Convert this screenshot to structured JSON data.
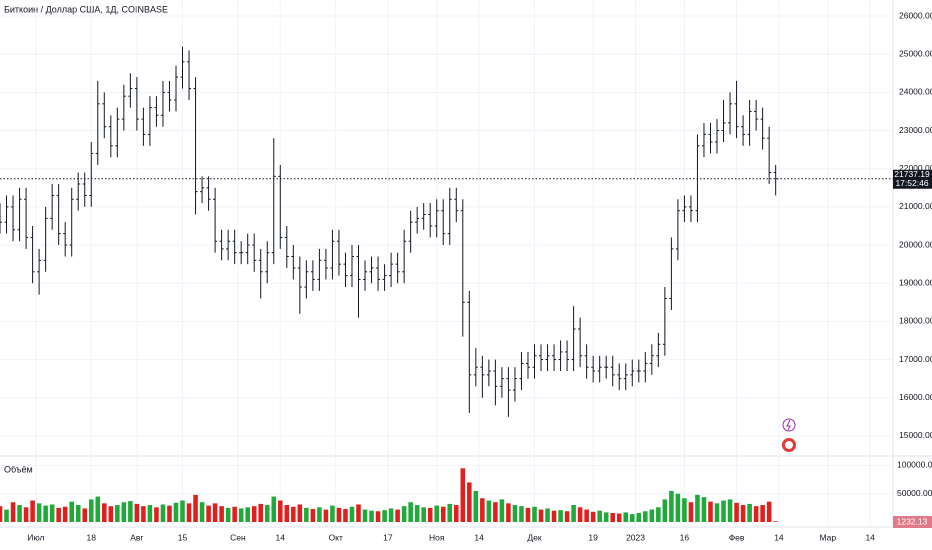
{
  "chart_data": {
    "type": "ohlc",
    "title": "Биткоин / Доллар США, 1Д, COINBASE",
    "color": "#131722",
    "grid": true,
    "x": [
      0,
      2,
      4,
      6,
      8,
      10,
      12,
      14,
      16,
      18,
      20,
      22,
      24,
      26,
      28,
      30,
      32,
      34,
      36,
      38,
      40,
      42,
      44,
      46,
      48,
      50,
      52,
      54,
      56,
      58,
      60,
      62,
      64,
      66,
      68,
      70,
      72,
      74,
      76,
      78,
      80,
      82,
      84,
      86,
      88,
      90,
      92,
      94,
      96,
      98,
      100,
      102,
      104,
      106,
      108,
      110,
      112,
      114,
      116,
      118,
      120,
      122,
      124,
      126,
      128,
      130,
      132,
      134,
      136,
      138,
      140,
      142,
      144,
      146,
      148,
      150,
      152,
      154,
      156,
      158,
      160,
      162,
      164,
      166,
      168,
      170,
      172,
      174,
      176,
      178,
      180,
      182,
      184,
      186,
      188,
      190,
      192,
      194,
      196,
      198,
      200,
      202,
      204,
      206,
      208,
      210,
      212,
      214,
      216,
      218,
      220,
      222,
      224,
      226,
      228,
      230,
      232,
      234,
      236,
      238
    ],
    "open": [
      20800,
      20600,
      21000,
      20400,
      21200,
      20200,
      19300,
      19600,
      20700,
      21300,
      20300,
      20000,
      21200,
      21600,
      21300,
      22400,
      23700,
      23100,
      22600,
      23300,
      23900,
      24100,
      23300,
      22900,
      23600,
      23400,
      24000,
      23800,
      24400,
      24800,
      24100,
      21400,
      21500,
      21200,
      20100,
      19900,
      20100,
      19800,
      19800,
      20000,
      19600,
      19300,
      19800,
      21800,
      20200,
      19700,
      19400,
      18900,
      19300,
      19100,
      19600,
      19400,
      20100,
      19500,
      19200,
      19700,
      19100,
      19300,
      19400,
      19100,
      19200,
      19500,
      19300,
      20100,
      20600,
      20700,
      20800,
      20500,
      20900,
      20300,
      21200,
      20900,
      18500,
      16600,
      16800,
      16600,
      16700,
      16300,
      16500,
      16200,
      16500,
      16900,
      16800,
      17100,
      17000,
      17100,
      17000,
      17200,
      17000,
      17800,
      17100,
      16800,
      16700,
      16800,
      16800,
      16600,
      16500,
      16600,
      16700,
      16700,
      16900,
      17100,
      17400,
      18600,
      19900,
      20900,
      21000,
      20900,
      22600,
      22900,
      22700,
      23000,
      23200,
      23700,
      23100,
      22900,
      23500,
      23300,
      22800,
      21900
    ],
    "high": [
      21100,
      21300,
      21300,
      21500,
      21500,
      20500,
      19900,
      21000,
      21600,
      21600,
      20600,
      21500,
      21900,
      21900,
      22700,
      24300,
      24000,
      23400,
      23600,
      24200,
      24500,
      24400,
      23600,
      23900,
      23900,
      24300,
      24300,
      24700,
      25200,
      25100,
      24400,
      21800,
      21800,
      21500,
      20400,
      20400,
      20400,
      20100,
      20300,
      20300,
      19900,
      20100,
      22800,
      22100,
      20500,
      20000,
      19700,
      19600,
      19600,
      19900,
      19900,
      20400,
      20400,
      19800,
      20000,
      20000,
      19600,
      19700,
      19700,
      19500,
      19800,
      19800,
      20400,
      20900,
      21000,
      21100,
      21100,
      21200,
      21200,
      21500,
      21500,
      21200,
      18800,
      17300,
      17100,
      17000,
      17000,
      16800,
      16800,
      16800,
      17200,
      17200,
      17400,
      17400,
      17400,
      17400,
      17500,
      17500,
      18400,
      18100,
      17400,
      17100,
      17100,
      17100,
      17100,
      16900,
      16900,
      17000,
      17000,
      17200,
      17400,
      17700,
      18900,
      20200,
      21200,
      21300,
      21300,
      22900,
      23200,
      23200,
      23300,
      23800,
      24000,
      24300,
      23400,
      23800,
      23800,
      23600,
      23100,
      22100
    ],
    "low": [
      20300,
      20300,
      20100,
      20100,
      19900,
      19000,
      18700,
      19300,
      20400,
      20000,
      19700,
      19700,
      20900,
      21000,
      21000,
      22100,
      22800,
      22300,
      22300,
      23000,
      23600,
      23000,
      22600,
      22600,
      23100,
      23100,
      23500,
      23500,
      24100,
      23800,
      20800,
      21100,
      20900,
      19800,
      19600,
      19600,
      19500,
      19500,
      19500,
      19300,
      18600,
      19000,
      19500,
      19900,
      19400,
      19100,
      18200,
      18600,
      18800,
      18800,
      19100,
      19100,
      19200,
      18900,
      18900,
      18100,
      18800,
      19000,
      18800,
      18800,
      18900,
      19000,
      19000,
      19800,
      20300,
      20400,
      20200,
      20200,
      20000,
      20000,
      20600,
      17600,
      15600,
      16300,
      16000,
      16300,
      15800,
      16000,
      15500,
      15900,
      16200,
      16500,
      16500,
      16700,
      16700,
      16700,
      16700,
      16700,
      16700,
      16800,
      16500,
      16400,
      16400,
      16500,
      16300,
      16200,
      16200,
      16300,
      16400,
      16400,
      16600,
      16800,
      17100,
      18300,
      19600,
      20600,
      20600,
      20600,
      22300,
      22400,
      22400,
      22700,
      22900,
      22800,
      22600,
      22600,
      23000,
      22500,
      21600,
      21300
    ],
    "close": [
      20600,
      21000,
      20400,
      21200,
      20200,
      19300,
      19600,
      20700,
      21300,
      20300,
      20000,
      21200,
      21600,
      21300,
      22400,
      23700,
      23100,
      22600,
      23300,
      23900,
      24100,
      23300,
      22900,
      23600,
      23400,
      24000,
      23800,
      24400,
      24800,
      24100,
      21400,
      21500,
      21200,
      20100,
      19900,
      20100,
      19800,
      19800,
      20000,
      19600,
      19300,
      19800,
      21800,
      20200,
      19700,
      19400,
      18900,
      19300,
      19100,
      19600,
      19400,
      20100,
      19500,
      19200,
      19700,
      19100,
      19300,
      19400,
      19100,
      19200,
      19500,
      19300,
      20100,
      20600,
      20700,
      20800,
      20500,
      20900,
      20300,
      21200,
      20900,
      18500,
      16600,
      16800,
      16600,
      16700,
      16300,
      16500,
      16200,
      16500,
      16900,
      16800,
      17100,
      17000,
      17100,
      17000,
      17200,
      17000,
      17800,
      17100,
      16800,
      16700,
      16800,
      16800,
      16600,
      16500,
      16600,
      16700,
      16700,
      16900,
      17100,
      17400,
      18600,
      19900,
      20900,
      21000,
      20900,
      22600,
      22900,
      22700,
      23000,
      23200,
      23700,
      23100,
      22900,
      23500,
      23300,
      22800,
      21900,
      21737.19
    ],
    "countdown": "17:52:46",
    "xlim": [
      0,
      274
    ],
    "xticks": [
      {
        "value": 11,
        "label": "Июл"
      },
      {
        "value": 28,
        "label": "18"
      },
      {
        "value": 42,
        "label": "Авг"
      },
      {
        "value": 56,
        "label": "15"
      },
      {
        "value": 73,
        "label": "Сен"
      },
      {
        "value": 86,
        "label": "14"
      },
      {
        "value": 103,
        "label": "Окт"
      },
      {
        "value": 119,
        "label": "17"
      },
      {
        "value": 134,
        "label": "Ноя"
      },
      {
        "value": 147,
        "label": "14"
      },
      {
        "value": 164,
        "label": "Дек"
      },
      {
        "value": 182,
        "label": "19"
      },
      {
        "value": 195,
        "label": "2023"
      },
      {
        "value": 210,
        "label": "16"
      },
      {
        "value": 226,
        "label": "Фев"
      },
      {
        "value": 239,
        "label": "14"
      },
      {
        "value": 254,
        "label": "Мар"
      },
      {
        "value": 267,
        "label": "14"
      }
    ],
    "ylim": [
      14500,
      26420
    ],
    "yticks": [
      {
        "value": 15000,
        "label": "15000.00"
      },
      {
        "value": 16000,
        "label": "16000.00"
      },
      {
        "value": 17000,
        "label": "17000.00"
      },
      {
        "value": 18000,
        "label": "18000.00"
      },
      {
        "value": 19000,
        "label": "19000.00"
      },
      {
        "value": 20000,
        "label": "20000.00"
      },
      {
        "value": 21000,
        "label": "21000.00"
      },
      {
        "value": 22000,
        "label": "22000.00"
      },
      {
        "value": 23000,
        "label": "23000.00"
      },
      {
        "value": 24000,
        "label": "24000.00"
      },
      {
        "value": 25000,
        "label": "25000.00"
      },
      {
        "value": 26000,
        "label": "26000.00"
      }
    ],
    "volume": {
      "title": "Объём",
      "up_color": "#1faa3a",
      "down_color": "#e0201f",
      "ylim": [
        0,
        115000
      ],
      "yticks": [
        {
          "value": 50000,
          "label": "50000.00"
        },
        {
          "value": 100000,
          "label": "100000.00"
        }
      ],
      "values": [
        28000,
        22000,
        35000,
        30000,
        26000,
        38000,
        33000,
        29000,
        31000,
        25000,
        27000,
        36000,
        30000,
        24000,
        40000,
        45000,
        33000,
        28000,
        30000,
        35000,
        37000,
        32000,
        28000,
        30000,
        26000,
        31000,
        29000,
        34000,
        38000,
        33000,
        48000,
        35000,
        29000,
        33000,
        28000,
        25000,
        27000,
        24000,
        26000,
        28000,
        32000,
        30000,
        45000,
        38000,
        30000,
        27000,
        31000,
        25000,
        23000,
        26000,
        22000,
        29000,
        25000,
        23000,
        27000,
        31000,
        22000,
        20000,
        19000,
        21000,
        24000,
        22000,
        28000,
        35000,
        30000,
        26000,
        25000,
        29000,
        27000,
        32000,
        30000,
        95000,
        70000,
        55000,
        42000,
        38000,
        35000,
        40000,
        33000,
        30000,
        28000,
        25000,
        27000,
        22000,
        24000,
        20000,
        21000,
        19000,
        30000,
        26000,
        22000,
        18000,
        20000,
        17000,
        16000,
        15000,
        17000,
        14000,
        16000,
        19000,
        22000,
        26000,
        40000,
        55000,
        50000,
        42000,
        35000,
        48000,
        44000,
        36000,
        33000,
        38000,
        40000,
        34000,
        30000,
        32000,
        28000,
        30000,
        36000,
        1232.13
      ]
    }
  }
}
